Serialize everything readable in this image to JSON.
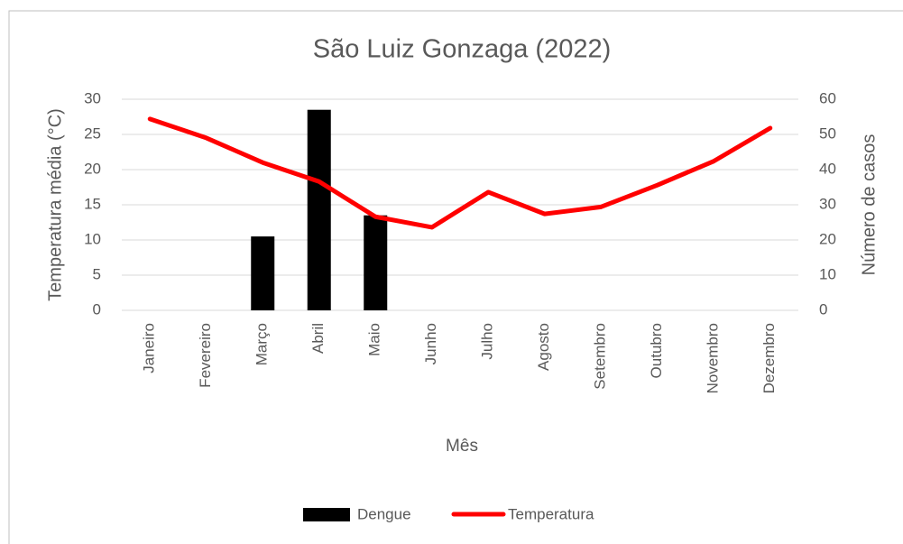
{
  "chart_data": {
    "type": "bar-line",
    "title": "São Luiz Gonzaga (2022)",
    "x_label": "Mês",
    "y_label": "Temperatura média (°C)",
    "y2_label": "Número de casos",
    "categories": [
      "Janeiro",
      "Fevereiro",
      "Março",
      "Abril",
      "Maio",
      "Junho",
      "Julho",
      "Agosto",
      "Setembro",
      "Outubro",
      "Novembro",
      "Dezembro"
    ],
    "series": [
      {
        "name": "Dengue",
        "type": "bar",
        "axis": "y2",
        "color": "#000000",
        "values": [
          0,
          0,
          21,
          57,
          27,
          0,
          0,
          0,
          0,
          0,
          0,
          0
        ]
      },
      {
        "name": "Temperatura",
        "type": "line",
        "color": "#ff0000",
        "values": [
          27.2,
          24.5,
          21,
          18.3,
          13.3,
          11.8,
          16.8,
          13.7,
          14.7,
          17.8,
          21.2,
          25.9
        ]
      }
    ],
    "ylim": [
      0,
      30
    ],
    "yticks": [
      0,
      5,
      10,
      15,
      20,
      25,
      30
    ],
    "y2lim": [
      0,
      60
    ],
    "y2ticks": [
      0,
      10,
      20,
      30,
      40,
      50,
      60
    ],
    "grid": true,
    "legend": "bottom"
  }
}
